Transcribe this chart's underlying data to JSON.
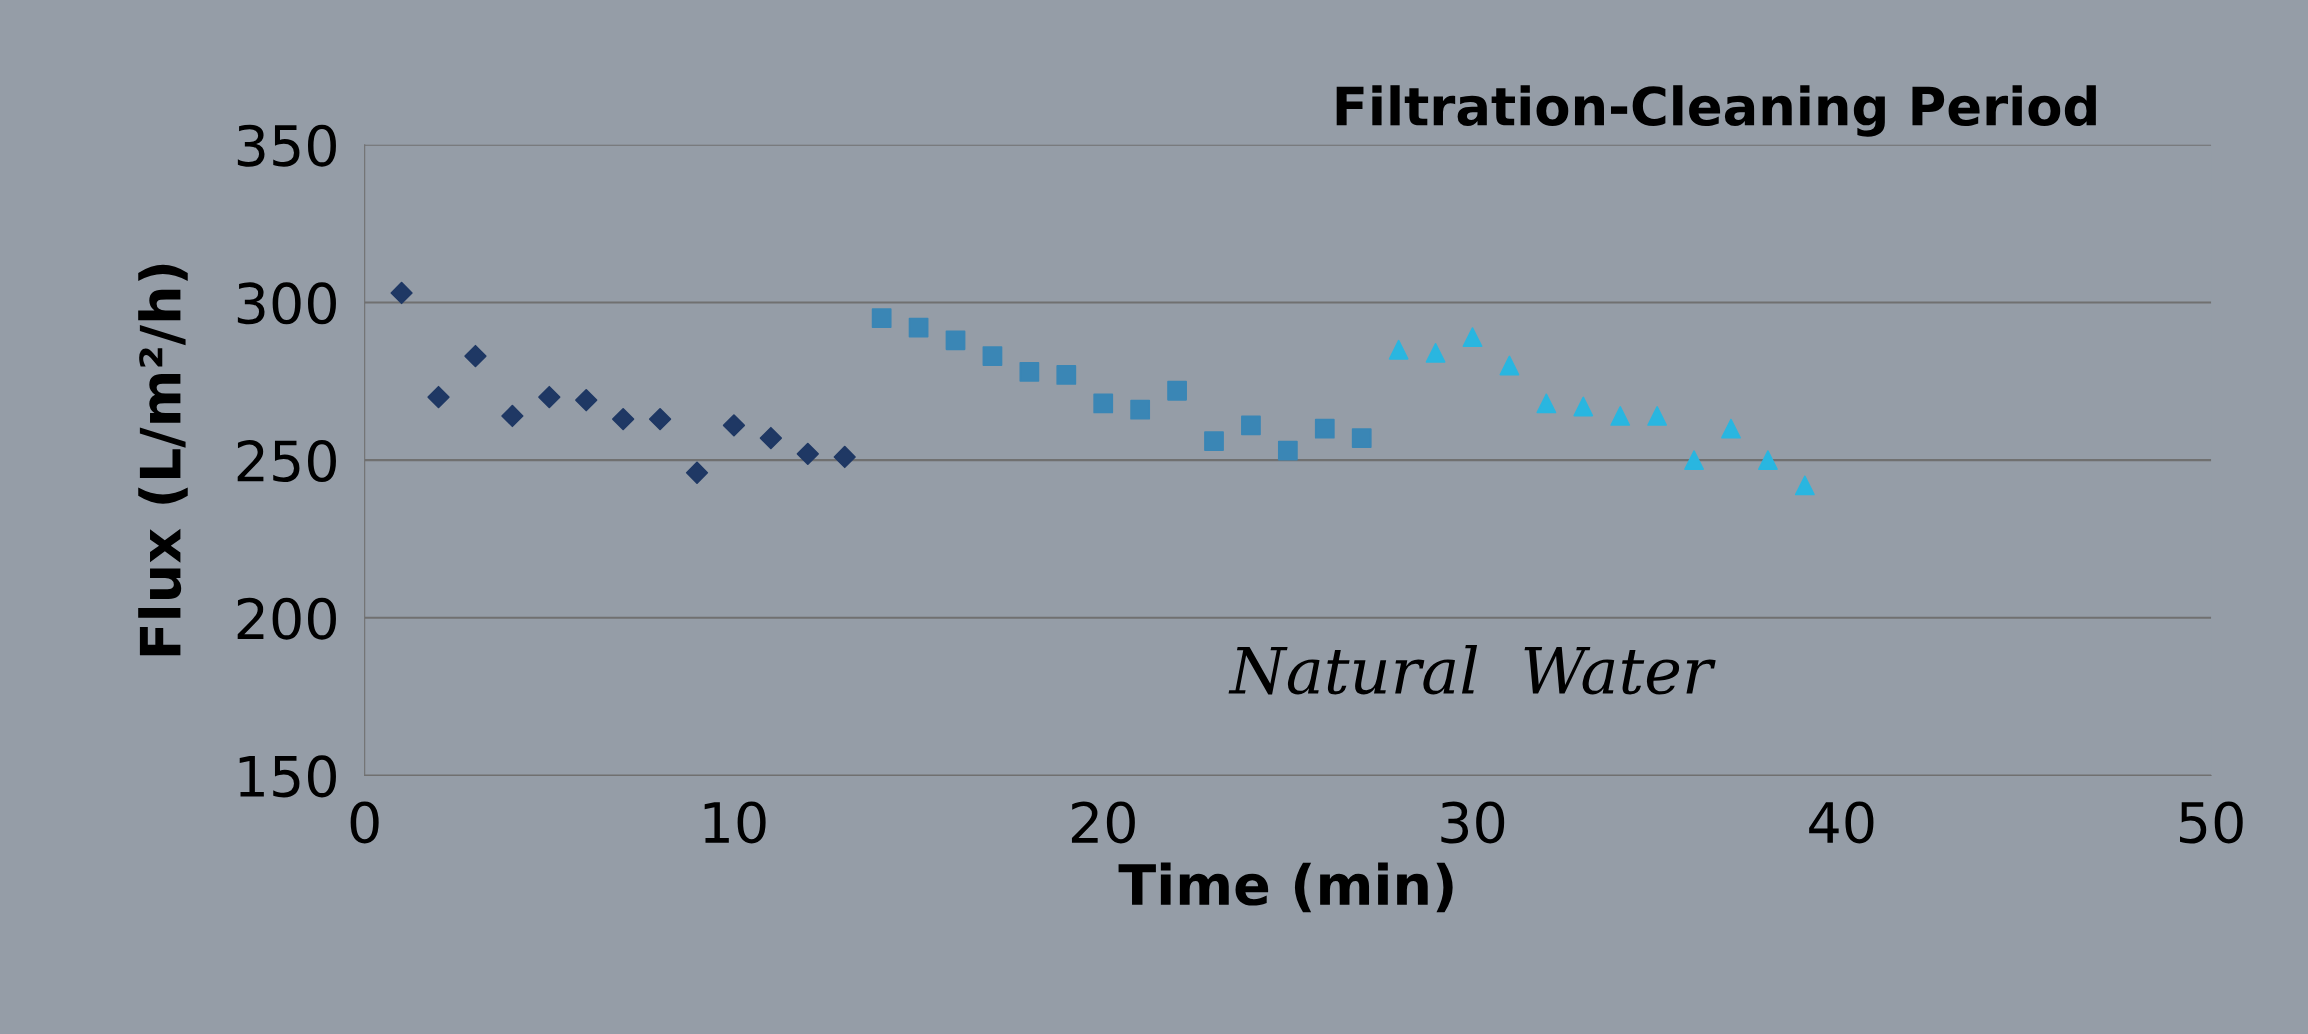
{
  "chart_data": {
    "type": "scatter",
    "title": "Filtration-Cleaning Period",
    "xlabel": "Time (min)",
    "ylabel": "Flux (L/m²/h)",
    "annotations": [
      "Natural  Water"
    ],
    "series": [
      {
        "color": "#1f3864",
        "marker": "diamond",
        "x": [
          1,
          2,
          3,
          4,
          5,
          6,
          7,
          8,
          9,
          10,
          11,
          12,
          13
        ],
        "values": [
          303,
          270,
          283,
          264,
          270,
          269,
          263,
          263,
          246,
          261,
          257,
          252,
          251
        ]
      },
      {
        "color": "#3a86b5",
        "marker": "square",
        "x": [
          14,
          15,
          16,
          17,
          18,
          19,
          20,
          21,
          22,
          23,
          24,
          25,
          26,
          27
        ],
        "values": [
          295,
          292,
          288,
          283,
          278,
          277,
          268,
          266,
          272,
          256,
          261,
          253,
          260,
          257
        ]
      },
      {
        "color": "#29b6e0",
        "marker": "triangle",
        "x": [
          28,
          29,
          30,
          31,
          32,
          33,
          34,
          35,
          36,
          37,
          38,
          39
        ],
        "values": [
          285,
          284,
          289,
          280,
          268,
          267,
          264,
          264,
          250,
          260,
          250,
          242
        ]
      }
    ],
    "xlim": [
      0,
      50
    ],
    "xticks": [
      0,
      10,
      20,
      30,
      40,
      50
    ],
    "ylim": [
      150,
      350
    ],
    "yticks": [
      150,
      200,
      250,
      300,
      350
    ],
    "grid": "y",
    "legend": false
  }
}
